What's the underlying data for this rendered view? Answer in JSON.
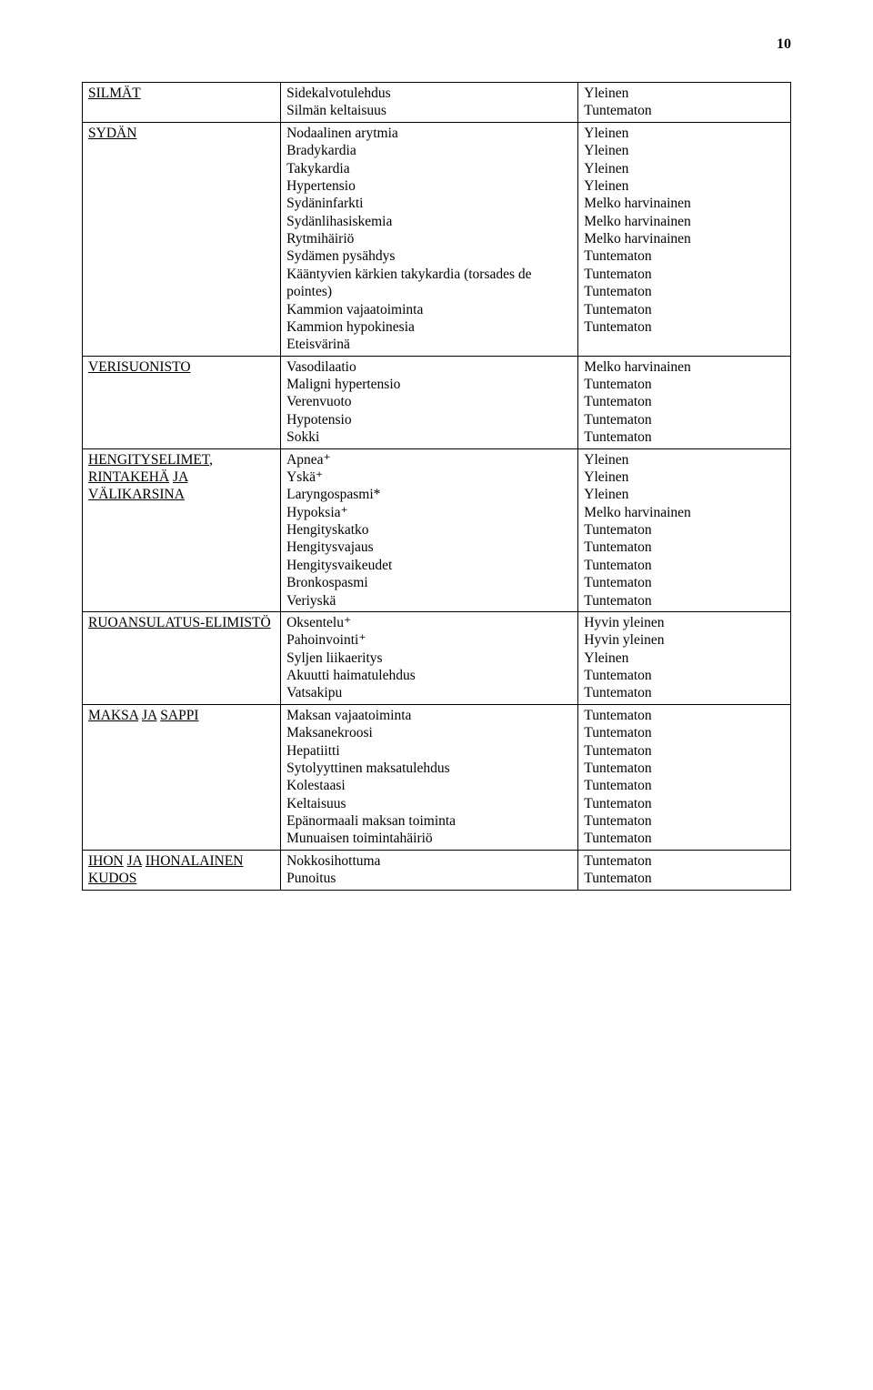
{
  "page_number": "10",
  "font": {
    "family": "Times New Roman",
    "body_size_pt": 12,
    "pagenum_size_pt": 12,
    "pagenum_weight": "bold",
    "text_color": "#000000",
    "background_color": "#ffffff",
    "border_color": "#000000"
  },
  "table": {
    "column_widths_pct": [
      28,
      42,
      30
    ],
    "rows": [
      {
        "category": "SILMÄT",
        "items": [
          {
            "label": "Sidekalvotulehdus",
            "freq": "Yleinen"
          },
          {
            "label": "Silmän keltaisuus",
            "freq": "Tuntematon"
          }
        ]
      },
      {
        "category": "SYDÄN",
        "items": [
          {
            "label": "Nodaalinen arytmia",
            "freq": "Yleinen"
          },
          {
            "label": "Bradykardia",
            "freq": "Yleinen"
          },
          {
            "label": "Takykardia",
            "freq": "Yleinen"
          },
          {
            "label": "Hypertensio",
            "freq": "Yleinen"
          },
          {
            "label": "Sydäninfarkti",
            "freq": "Melko harvinainen"
          },
          {
            "label": "Sydänlihasiskemia",
            "freq": "Melko harvinainen"
          },
          {
            "label": "Rytmihäiriö",
            "freq": "Melko harvinainen"
          },
          {
            "label": "Sydämen pysähdys",
            "freq": "Tuntematon"
          },
          {
            "label": "Kääntyvien kärkien takykardia (torsades de pointes)",
            "freq": "Tuntematon"
          },
          {
            "label": "Kammion vajaatoiminta",
            "freq": "Tuntematon"
          },
          {
            "label": "Kammion hypokinesia",
            "freq": "Tuntematon"
          },
          {
            "label": "Eteisvärinä",
            "freq": "Tuntematon"
          }
        ]
      },
      {
        "category": "VERISUONISTO",
        "items": [
          {
            "label": "Vasodilaatio",
            "freq": "Melko harvinainen"
          },
          {
            "label": "Maligni hypertensio",
            "freq": "Tuntematon"
          },
          {
            "label": "Verenvuoto",
            "freq": "Tuntematon"
          },
          {
            "label": "Hypotensio",
            "freq": "Tuntematon"
          },
          {
            "label": "Sokki",
            "freq": "Tuntematon"
          }
        ]
      },
      {
        "category": "HENGITYSELIMET, RINTAKEHÄ JA VÄLIKARSINA",
        "items": [
          {
            "label": "Apnea⁺",
            "freq": "Yleinen"
          },
          {
            "label": "Yskä⁺",
            "freq": "Yleinen"
          },
          {
            "label": "Laryngospasmi*",
            "freq": "Yleinen"
          },
          {
            "label": "Hypoksia⁺",
            "freq": "Melko harvinainen"
          },
          {
            "label": "Hengityskatko",
            "freq": "Tuntematon"
          },
          {
            "label": "Hengitysvajaus",
            "freq": "Tuntematon"
          },
          {
            "label": "Hengitysvaikeudet",
            "freq": "Tuntematon"
          },
          {
            "label": "Bronkospasmi",
            "freq": "Tuntematon"
          },
          {
            "label": "Veriyskä",
            "freq": "Tuntematon"
          }
        ]
      },
      {
        "category": "RUOANSULATUS-ELIMISTÖ",
        "items": [
          {
            "label": "Oksentelu⁺",
            "freq": "Hyvin yleinen"
          },
          {
            "label": "Pahoinvointi⁺",
            "freq": "Hyvin yleinen"
          },
          {
            "label": "Syljen liikaeritys",
            "freq": "Yleinen"
          },
          {
            "label": "Akuutti haimatulehdus",
            "freq": "Tuntematon"
          },
          {
            "label": "Vatsakipu",
            "freq": "Tuntematon"
          }
        ]
      },
      {
        "category": "MAKSA JA SAPPI",
        "items": [
          {
            "label": "Maksan vajaatoiminta",
            "freq": "Tuntematon"
          },
          {
            "label": "Maksanekroosi",
            "freq": "Tuntematon"
          },
          {
            "label": "Hepatiitti",
            "freq": "Tuntematon"
          },
          {
            "label": "Sytolyyttinen maksatulehdus",
            "freq": "Tuntematon"
          },
          {
            "label": "Kolestaasi",
            "freq": "Tuntematon"
          },
          {
            "label": "Keltaisuus",
            "freq": "Tuntematon"
          },
          {
            "label": "Epänormaali maksan toiminta",
            "freq": "Tuntematon"
          },
          {
            "label": "Munuaisen toimintahäiriö",
            "freq": "Tuntematon"
          }
        ]
      },
      {
        "category": "IHON JA IHONALAINEN KUDOS",
        "items": [
          {
            "label": "Nokkosihottuma",
            "freq": "Tuntematon"
          },
          {
            "label": "Punoitus",
            "freq": "Tuntematon"
          }
        ]
      }
    ]
  }
}
